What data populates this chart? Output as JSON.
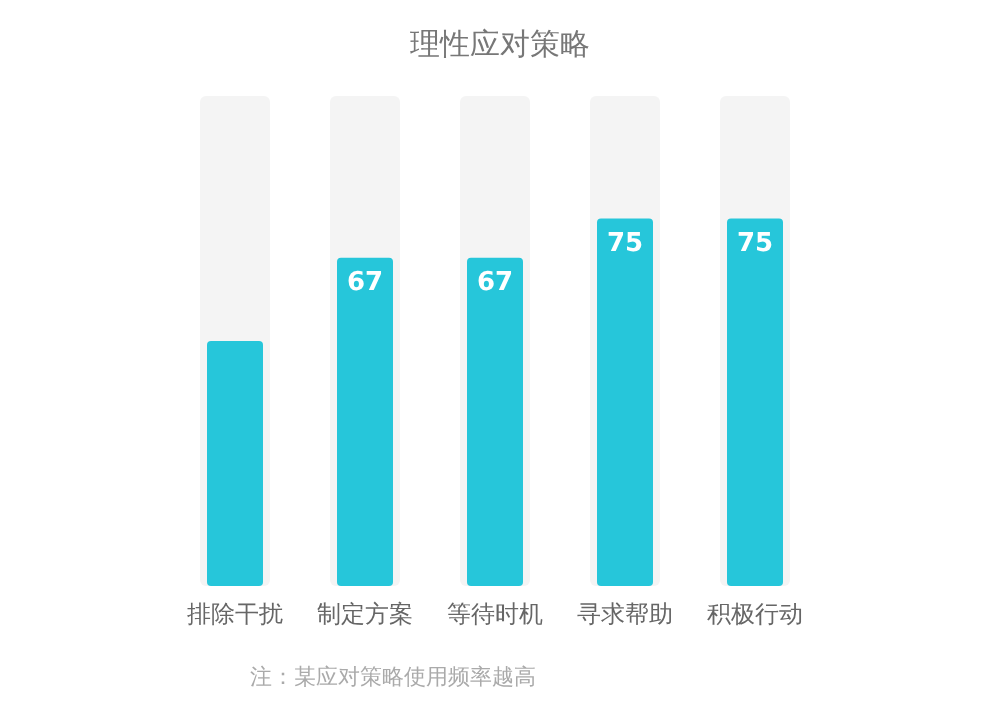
{
  "chart_data": {
    "type": "bar",
    "title": "理性应对策略",
    "categories": [
      "排除干扰",
      "制定方案",
      "等待时机",
      "寻求帮助",
      "积极行动"
    ],
    "values": [
      50,
      67,
      67,
      75,
      75
    ],
    "value_labels": [
      null,
      "67",
      "67",
      "75",
      "75"
    ],
    "color": "#26c6da",
    "ylim": [
      0,
      100
    ],
    "annotations": [
      "注：某应对策略使用频率越高"
    ]
  }
}
